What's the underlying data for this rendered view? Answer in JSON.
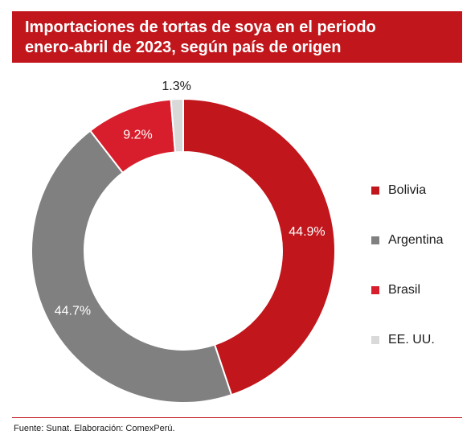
{
  "header": {
    "title_line1": "Importaciones de tortas de soya en el periodo",
    "title_line2": "enero-abril de 2023, según país de origen"
  },
  "chart_data": {
    "type": "pie",
    "style": "donut",
    "categories": [
      "Bolivia",
      "Argentina",
      "Brasil",
      "EE. UU."
    ],
    "values": [
      44.9,
      44.7,
      9.2,
      1.3
    ],
    "data_labels": [
      "44.9%",
      "44.7%",
      "9.2%",
      "1.3%"
    ],
    "colors": [
      "#c0161c",
      "#808080",
      "#d81e2c",
      "#d9d9d9"
    ],
    "label_colors": [
      "#ffffff",
      "#ffffff",
      "#ffffff",
      "#1a1a1a"
    ],
    "legend_position": "right",
    "start_angle": "top",
    "direction": "clockwise"
  },
  "footer": {
    "source": "Fuente: Sunat. Elaboración: ComexPerú."
  }
}
